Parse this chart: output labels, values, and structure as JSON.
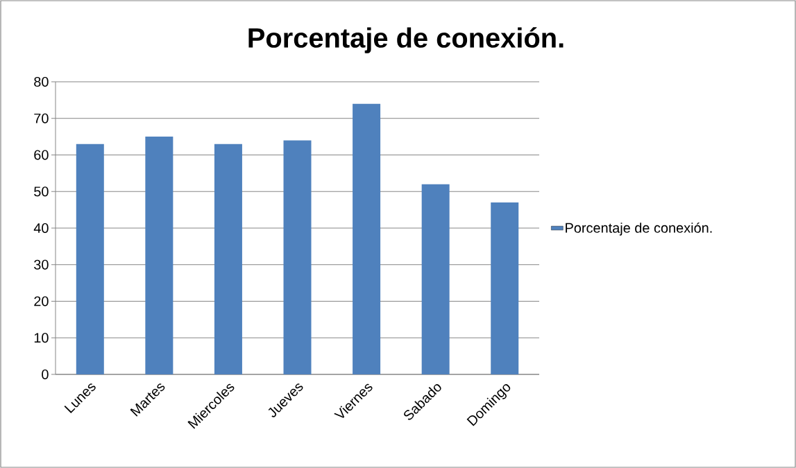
{
  "chart_data": {
    "type": "bar",
    "title": "Porcentaje de conexión.",
    "categories": [
      "Lunes",
      "Martes",
      "Miercoles",
      "Jueves",
      "Viernes",
      "Sabado",
      "Domingo"
    ],
    "series": [
      {
        "name": "Porcentaje de conexión.",
        "color": "#4f81bd",
        "values": [
          63,
          65,
          63,
          64,
          74,
          52,
          47
        ]
      }
    ],
    "ylim": [
      0,
      80
    ],
    "yticks": [
      0,
      10,
      20,
      30,
      40,
      50,
      60,
      70,
      80
    ],
    "grid": "y",
    "legend": "right"
  }
}
